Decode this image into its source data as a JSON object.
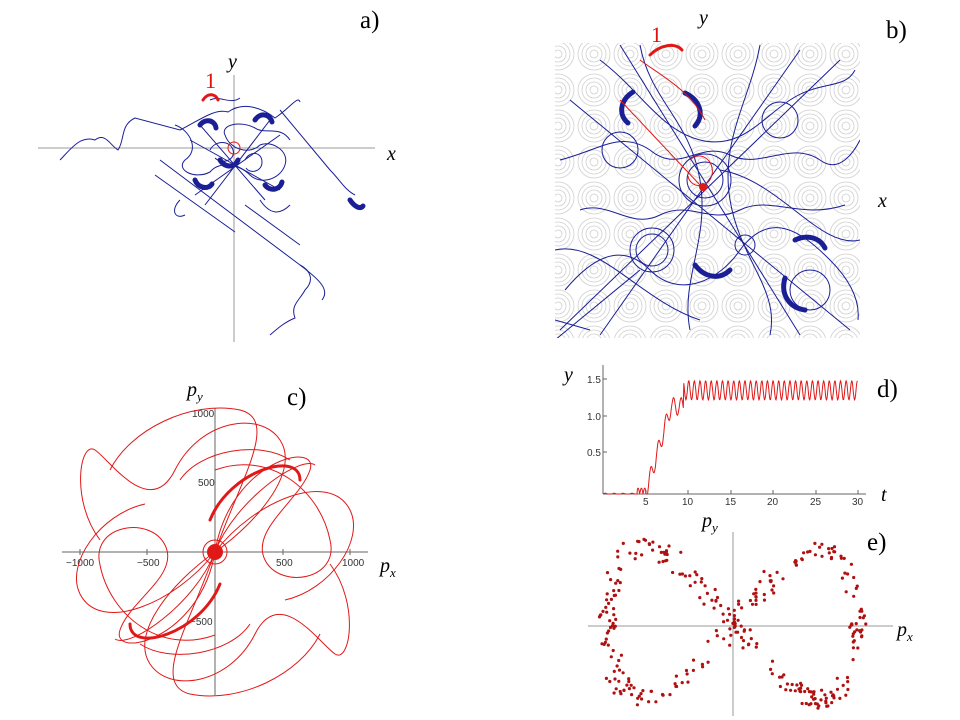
{
  "panels": {
    "a": {
      "label": "a)",
      "x_axis": "x",
      "y_axis": "y",
      "start_marker": "1"
    },
    "b": {
      "label": "b)",
      "x_axis": "x",
      "y_axis": "y",
      "start_marker": "1"
    },
    "c": {
      "label": "c)",
      "x_axis": "p",
      "x_sub": "x",
      "y_axis": "p",
      "y_sub": "y",
      "x_ticks": [
        "−1000",
        "−500",
        "500",
        "1000"
      ],
      "y_ticks": [
        "1000",
        "500",
        "−500"
      ]
    },
    "d": {
      "label": "d)",
      "x_axis": "t",
      "y_axis": "y",
      "x_ticks": [
        "5",
        "10",
        "15",
        "20",
        "25",
        "30"
      ],
      "y_ticks": [
        "0.5",
        "1.0",
        "1.5"
      ]
    },
    "e": {
      "label": "e)",
      "x_axis": "p",
      "x_sub": "x",
      "y_axis": "p",
      "y_sub": "y"
    }
  },
  "colors": {
    "trajectory": "#1a1f96",
    "highlight": "#e01818",
    "scatter": "#b01010",
    "potential": "#c8c8c8"
  }
}
